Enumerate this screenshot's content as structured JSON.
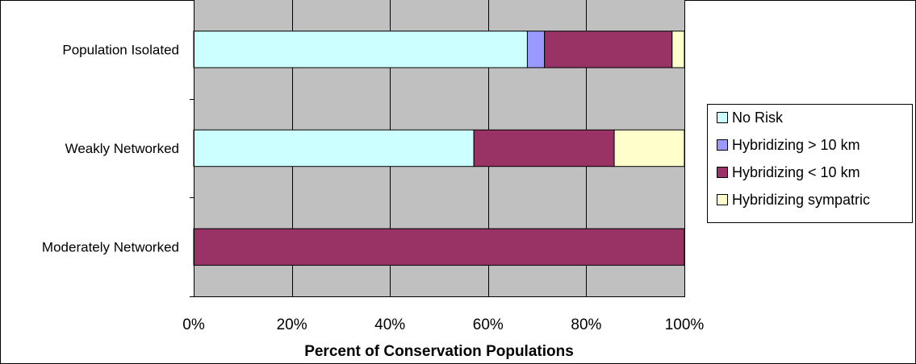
{
  "chart_data": {
    "type": "bar",
    "orientation": "horizontal",
    "stacked": "percent",
    "categories": [
      "Population Isolated",
      "Weakly Networked",
      "Moderately Networked"
    ],
    "series": [
      {
        "name": "No Risk",
        "color": "#ccffff",
        "values": [
          68,
          57.1,
          0
        ]
      },
      {
        "name": "Hybridizing > 10 km",
        "color": "#9999ff",
        "values": [
          3.5,
          0,
          0
        ]
      },
      {
        "name": "Hybridizing < 10 km",
        "color": "#993366",
        "values": [
          26,
          28.6,
          100
        ]
      },
      {
        "name": "Hybridizing sympatric",
        "color": "#ffffcc",
        "values": [
          2.5,
          14.3,
          0
        ]
      }
    ],
    "xlabel": "Percent of Conservation Populations",
    "xlim": [
      0,
      100
    ],
    "x_ticks": [
      "0%",
      "20%",
      "40%",
      "60%",
      "80%",
      "100%"
    ],
    "grid": true,
    "plot_background": "#c0c0c0",
    "legend": "right"
  }
}
